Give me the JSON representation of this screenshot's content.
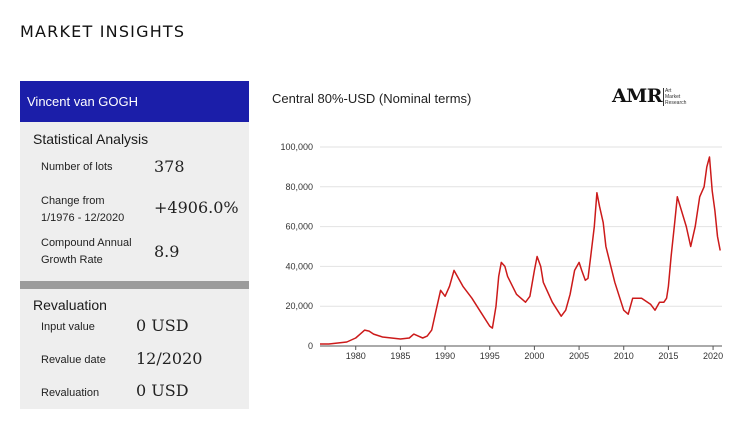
{
  "page": {
    "title": "MARKET INSIGHTS"
  },
  "panel": {
    "artist": "Vincent van GOGH",
    "statistics": {
      "title": "Statistical Analysis",
      "rows": [
        {
          "label": "Number of lots",
          "value": "378"
        },
        {
          "label": "Change from\n1/1976 - 12/2020",
          "value": "+4906.0%"
        },
        {
          "label": "Compound Annual\nGrowth Rate",
          "value": "8.9"
        }
      ]
    },
    "revaluation": {
      "title": "Revaluation",
      "rows": [
        {
          "label": "Input value",
          "value": "0 USD"
        },
        {
          "label": "Revalue date",
          "value": "12/2020"
        },
        {
          "label": "Revaluation",
          "value": "0 USD"
        }
      ]
    },
    "colors": {
      "header_bg": "#1b1ea9",
      "box_bg": "#eeeeee",
      "divider": "#9b9b9b"
    }
  },
  "logo": {
    "main": "AMR",
    "sub_lines": [
      "Art",
      "Market",
      "Research"
    ]
  },
  "chart_data": {
    "type": "line",
    "title": "Central 80%-USD (Nominal terms)",
    "ylim": [
      0,
      100000
    ],
    "xlim": [
      1976,
      2021
    ],
    "y_ticks": [
      0,
      20000,
      40000,
      60000,
      80000,
      100000
    ],
    "y_tick_labels": [
      "0",
      "20,000",
      "40,000",
      "60,000",
      "80,000",
      "100,000"
    ],
    "x_ticks": [
      1980,
      1985,
      1990,
      1995,
      2000,
      2005,
      2010,
      2015,
      2020
    ],
    "x_tick_labels": [
      "1980",
      "1985",
      "1990",
      "1995",
      "2000",
      "2005",
      "2010",
      "2015",
      "2020"
    ],
    "grid": true,
    "color": "#cc1a1a",
    "series": [
      {
        "x": [
          1976,
          1977,
          1978,
          1979,
          1980,
          1980.5,
          1981,
          1981.5,
          1982,
          1983,
          1984,
          1985,
          1986,
          1986.5,
          1987,
          1987.5,
          1988,
          1988.5,
          1989,
          1989.5,
          1990,
          1990.5,
          1991,
          1992,
          1993,
          1994,
          1995,
          1995.3,
          1995.7,
          1996,
          1996.3,
          1996.7,
          1997,
          1998,
          1999,
          1999.5,
          2000,
          2000.3,
          2000.7,
          2001,
          2002,
          2003,
          2003.5,
          2004,
          2004.5,
          2005,
          2005.3,
          2005.7,
          2006,
          2006.3,
          2006.7,
          2007,
          2007.3,
          2007.7,
          2008,
          2009,
          2010,
          2010.5,
          2011,
          2012,
          2013,
          2013.5,
          2014,
          2014.5,
          2014.8,
          2015,
          2015.3,
          2015.7,
          2016,
          2017,
          2017.5,
          2018,
          2018.5,
          2019,
          2019.3,
          2019.6,
          2019.9,
          2020.2,
          2020.5,
          2020.8
        ],
        "y": [
          1000,
          1000,
          1500,
          2000,
          4000,
          6000,
          8000,
          7500,
          6000,
          4500,
          4000,
          3500,
          4000,
          6000,
          5000,
          4000,
          5000,
          8000,
          18000,
          28000,
          25000,
          30000,
          38000,
          30000,
          24000,
          17000,
          10000,
          9000,
          20000,
          35000,
          42000,
          40000,
          35000,
          26000,
          22000,
          25000,
          38000,
          45000,
          40000,
          32000,
          22000,
          15000,
          18000,
          26000,
          38000,
          42000,
          38000,
          33000,
          34000,
          45000,
          60000,
          77000,
          70000,
          62000,
          50000,
          32000,
          18000,
          16000,
          24000,
          24000,
          21000,
          18000,
          22000,
          22000,
          24000,
          30000,
          45000,
          62000,
          75000,
          60000,
          50000,
          60000,
          75000,
          80000,
          90000,
          95000,
          78000,
          68000,
          55000,
          48000
        ]
      }
    ]
  }
}
